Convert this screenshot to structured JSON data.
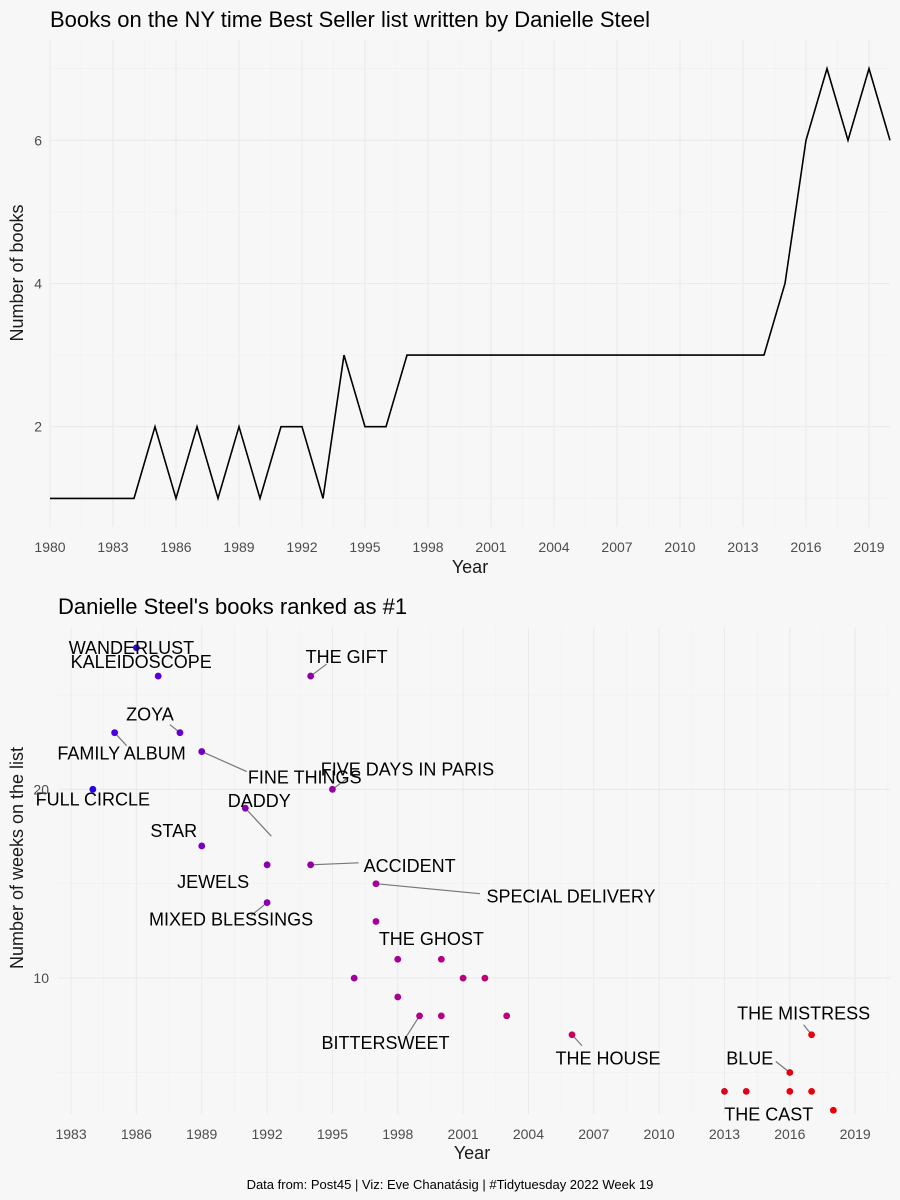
{
  "chart_data": [
    {
      "type": "line",
      "title": "Books on the NY time Best Seller list written by Danielle Steel",
      "xlabel": "Year",
      "ylabel": "Number of books",
      "xlim": [
        1980,
        2020
      ],
      "ylim": [
        0.6,
        7.4
      ],
      "xticks": [
        "1980",
        "1983",
        "1986",
        "1989",
        "1992",
        "1995",
        "1998",
        "2001",
        "2004",
        "2007",
        "2010",
        "2013",
        "2016",
        "2019"
      ],
      "yticks": [
        "2",
        "4",
        "6"
      ],
      "grid": true,
      "x": [
        1980,
        1981,
        1982,
        1983,
        1984,
        1985,
        1986,
        1987,
        1988,
        1989,
        1990,
        1991,
        1992,
        1993,
        1994,
        1995,
        1996,
        1997,
        1998,
        1999,
        2000,
        2001,
        2002,
        2003,
        2004,
        2005,
        2006,
        2007,
        2008,
        2009,
        2010,
        2011,
        2012,
        2013,
        2014,
        2015,
        2016,
        2017,
        2018,
        2019,
        2020
      ],
      "y": [
        1,
        1,
        1,
        1,
        1,
        2,
        1,
        2,
        1,
        2,
        1,
        2,
        2,
        1,
        3,
        2,
        2,
        3,
        3,
        3,
        3,
        3,
        3,
        3,
        3,
        3,
        3,
        3,
        3,
        3,
        3,
        3,
        3,
        3,
        3,
        4,
        6,
        7,
        6,
        7,
        6
      ]
    },
    {
      "type": "scatter",
      "title": "Danielle Steel's books ranked as #1",
      "xlabel": "Year",
      "ylabel": "Number of weeks on the list",
      "xlim": [
        1982.4,
        2020.6
      ],
      "ylim": [
        2.8,
        28.6
      ],
      "xticks": [
        "1983",
        "1986",
        "1989",
        "1992",
        "1995",
        "1998",
        "2001",
        "2004",
        "2007",
        "2010",
        "2013",
        "2016",
        "2019"
      ],
      "yticks": [
        "10",
        "20"
      ],
      "grid": true,
      "points": [
        {
          "x": 1984,
          "y": 20,
          "color": "#2a00ec",
          "label": "FULL CIRCLE"
        },
        {
          "x": 1985,
          "y": 23,
          "color": "#4b00e0",
          "label": "FAMILY ALBUM"
        },
        {
          "x": 1986,
          "y": 27.5,
          "color": "#3a00e6",
          "label": "WANDERLUST"
        },
        {
          "x": 1987,
          "y": 26,
          "color": "#5a00d6",
          "label": "KALEIDOSCOPE"
        },
        {
          "x": 1988,
          "y": 23,
          "color": "#6a00cc",
          "label": "ZOYA"
        },
        {
          "x": 1989,
          "y": 22,
          "color": "#7400c4",
          "label": "FINE THINGS"
        },
        {
          "x": 1989,
          "y": 17,
          "color": "#7a00c0",
          "label": "STAR"
        },
        {
          "x": 1991,
          "y": 19,
          "color": "#8400b6",
          "label": "DADDY"
        },
        {
          "x": 1992,
          "y": 16,
          "color": "#8c00b0",
          "label": "JEWELS"
        },
        {
          "x": 1992,
          "y": 14,
          "color": "#8c00ae",
          "label": "MIXED BLESSINGS"
        },
        {
          "x": 1994,
          "y": 26,
          "color": "#9200aa",
          "label": "THE GIFT"
        },
        {
          "x": 1994,
          "y": 16,
          "color": "#9400a6",
          "label": "ACCIDENT"
        },
        {
          "x": 1995,
          "y": 20,
          "color": "#9800a2",
          "label": "FIVE DAYS IN PARIS"
        },
        {
          "x": 1996,
          "y": 10,
          "color": "#a0009c",
          "label": ""
        },
        {
          "x": 1997,
          "y": 15,
          "color": "#a20098",
          "label": "SPECIAL DELIVERY"
        },
        {
          "x": 1997,
          "y": 13,
          "color": "#a40096",
          "label": ""
        },
        {
          "x": 1998,
          "y": 11,
          "color": "#a80092",
          "label": ""
        },
        {
          "x": 1998,
          "y": 9,
          "color": "#aa0090",
          "label": ""
        },
        {
          "x": 1999,
          "y": 8,
          "color": "#ae008a",
          "label": "BITTERSWEET"
        },
        {
          "x": 2000,
          "y": 11,
          "color": "#b20086",
          "label": "THE GHOST"
        },
        {
          "x": 2000,
          "y": 8,
          "color": "#b40084",
          "label": ""
        },
        {
          "x": 2001,
          "y": 10,
          "color": "#b8007e",
          "label": ""
        },
        {
          "x": 2002,
          "y": 10,
          "color": "#bc0078",
          "label": ""
        },
        {
          "x": 2003,
          "y": 8,
          "color": "#be0074",
          "label": ""
        },
        {
          "x": 2006,
          "y": 7,
          "color": "#c8005e",
          "label": "THE HOUSE"
        },
        {
          "x": 2013,
          "y": 4,
          "color": "#e0001e",
          "label": ""
        },
        {
          "x": 2014,
          "y": 4,
          "color": "#e20018",
          "label": ""
        },
        {
          "x": 2016,
          "y": 5,
          "color": "#e60010",
          "label": "BLUE"
        },
        {
          "x": 2016,
          "y": 4,
          "color": "#e6000e",
          "label": "THE CAST"
        },
        {
          "x": 2017,
          "y": 7,
          "color": "#e8000a",
          "label": "THE MISTRESS"
        },
        {
          "x": 2017,
          "y": 4,
          "color": "#e8000a",
          "label": ""
        },
        {
          "x": 2018,
          "y": 3,
          "color": "#ec0004",
          "label": ""
        }
      ]
    }
  ],
  "caption": "Data from: Post45 | Viz: Eve Chanatásig | #Tidytuesday 2022 Week 19"
}
